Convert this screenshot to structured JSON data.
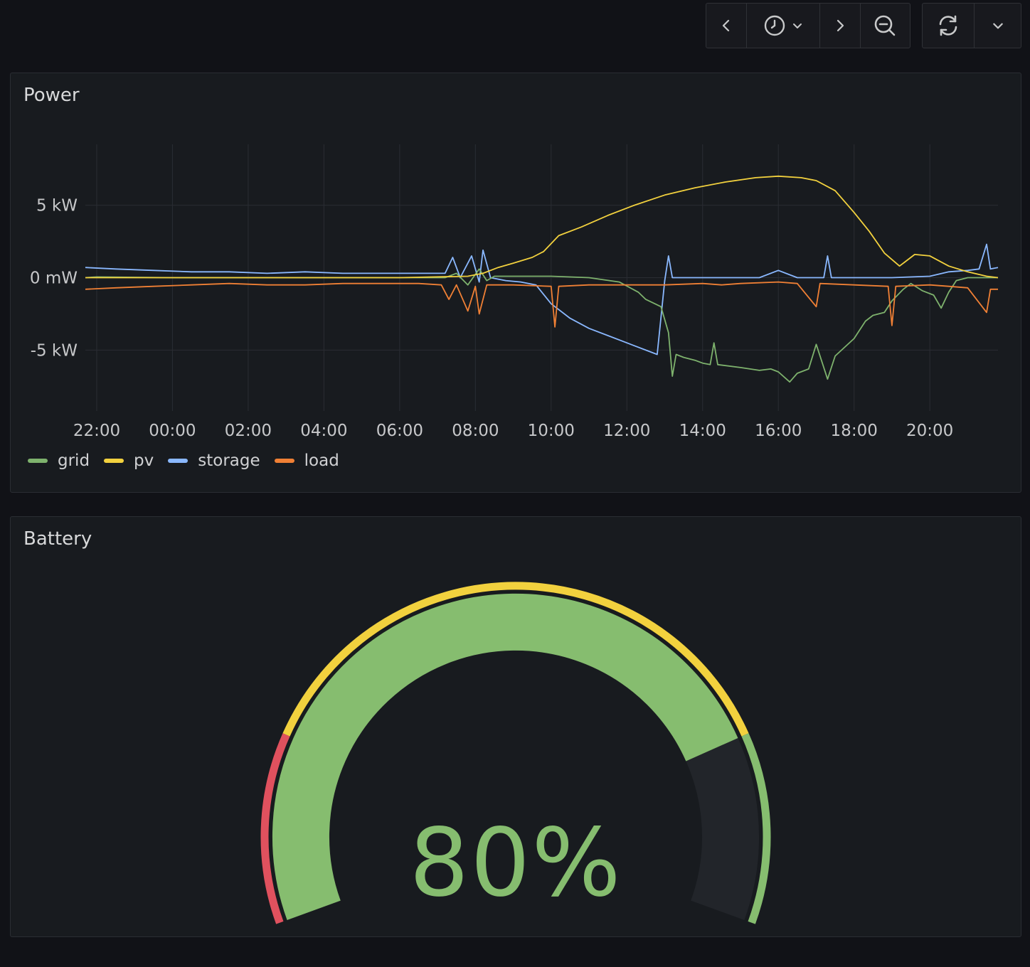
{
  "toolbar": {
    "icons": [
      "chevron-left-icon",
      "clock-icon",
      "chevron-down-icon",
      "chevron-right-icon",
      "zoom-out-icon",
      "refresh-icon",
      "chevron-down-icon"
    ]
  },
  "colors": {
    "grid": "#7eb26d",
    "gridLine": "#86bd6f",
    "pv": "#f2d13e",
    "storage": "#8ab8ff",
    "load": "#f08035",
    "red": "#e0515e",
    "gaugeTrack": "#22252a"
  },
  "power": {
    "title": "Power",
    "chart_data": {
      "type": "line",
      "x_ticks": [
        "22:00",
        "00:00",
        "02:00",
        "04:00",
        "06:00",
        "08:00",
        "10:00",
        "12:00",
        "14:00",
        "16:00",
        "18:00",
        "20:00"
      ],
      "y_ticks": [
        "5 kW",
        "0 mW",
        "-5 kW"
      ],
      "x_range_hours": [
        21.7,
        45.8
      ],
      "y_range_kw": [
        -9.2,
        9.2
      ],
      "series": [
        {
          "name": "grid",
          "color": "#7eb26d",
          "points": [
            [
              21.7,
              0
            ],
            [
              22,
              0.05
            ],
            [
              24,
              0
            ],
            [
              26,
              0
            ],
            [
              28,
              0
            ],
            [
              30,
              0
            ],
            [
              31.2,
              0
            ],
            [
              31.5,
              0.3
            ],
            [
              31.8,
              -0.5
            ],
            [
              32.1,
              0.6
            ],
            [
              32.3,
              -0.2
            ],
            [
              32.5,
              0.1
            ],
            [
              33,
              0.1
            ],
            [
              34,
              0.1
            ],
            [
              35,
              0
            ],
            [
              35.8,
              -0.3
            ],
            [
              36.3,
              -1
            ],
            [
              36.5,
              -1.5
            ],
            [
              36.9,
              -2
            ],
            [
              37.1,
              -3.8
            ],
            [
              37.2,
              -6.8
            ],
            [
              37.3,
              -5.3
            ],
            [
              37.5,
              -5.5
            ],
            [
              37.8,
              -5.7
            ],
            [
              38,
              -5.9
            ],
            [
              38.2,
              -6
            ],
            [
              38.3,
              -4.5
            ],
            [
              38.4,
              -6
            ],
            [
              39,
              -6.2
            ],
            [
              39.5,
              -6.4
            ],
            [
              39.8,
              -6.3
            ],
            [
              40,
              -6.5
            ],
            [
              40.3,
              -7.2
            ],
            [
              40.5,
              -6.6
            ],
            [
              40.8,
              -6.3
            ],
            [
              41,
              -4.6
            ],
            [
              41.2,
              -6.2
            ],
            [
              41.3,
              -7
            ],
            [
              41.5,
              -5.4
            ],
            [
              42,
              -4.2
            ],
            [
              42.3,
              -3
            ],
            [
              42.5,
              -2.6
            ],
            [
              42.8,
              -2.4
            ],
            [
              43,
              -1.6
            ],
            [
              43.3,
              -0.8
            ],
            [
              43.5,
              -0.4
            ],
            [
              43.8,
              -0.9
            ],
            [
              44.1,
              -1.2
            ],
            [
              44.3,
              -2.1
            ],
            [
              44.5,
              -1
            ],
            [
              44.7,
              -0.2
            ],
            [
              45,
              0
            ],
            [
              45.5,
              0
            ],
            [
              45.8,
              0
            ]
          ]
        },
        {
          "name": "pv",
          "color": "#f2d13e",
          "points": [
            [
              21.7,
              0
            ],
            [
              24,
              0
            ],
            [
              26,
              0
            ],
            [
              28,
              0
            ],
            [
              30,
              0
            ],
            [
              31.8,
              0.1
            ],
            [
              32.2,
              0.3
            ],
            [
              32.6,
              0.7
            ],
            [
              33,
              1
            ],
            [
              33.5,
              1.4
            ],
            [
              33.8,
              1.8
            ],
            [
              34.2,
              2.9
            ],
            [
              34.8,
              3.5
            ],
            [
              35.5,
              4.3
            ],
            [
              36.2,
              5
            ],
            [
              37,
              5.7
            ],
            [
              37.8,
              6.2
            ],
            [
              38.6,
              6.6
            ],
            [
              39.4,
              6.9
            ],
            [
              40,
              7
            ],
            [
              40.6,
              6.9
            ],
            [
              41,
              6.7
            ],
            [
              41.5,
              6
            ],
            [
              42,
              4.5
            ],
            [
              42.4,
              3.2
            ],
            [
              42.8,
              1.7
            ],
            [
              43.2,
              0.8
            ],
            [
              43.6,
              1.6
            ],
            [
              44,
              1.5
            ],
            [
              44.5,
              0.8
            ],
            [
              45,
              0.4
            ],
            [
              45.5,
              0.1
            ],
            [
              45.8,
              0
            ]
          ]
        },
        {
          "name": "storage",
          "color": "#8ab8ff",
          "points": [
            [
              21.7,
              0.7
            ],
            [
              22.5,
              0.6
            ],
            [
              23.5,
              0.5
            ],
            [
              24.5,
              0.4
            ],
            [
              25.5,
              0.4
            ],
            [
              26.5,
              0.3
            ],
            [
              27.5,
              0.4
            ],
            [
              28.5,
              0.3
            ],
            [
              29.5,
              0.3
            ],
            [
              30.5,
              0.3
            ],
            [
              31.2,
              0.3
            ],
            [
              31.4,
              1.4
            ],
            [
              31.6,
              0
            ],
            [
              31.9,
              1.5
            ],
            [
              32.1,
              -0.3
            ],
            [
              32.2,
              1.9
            ],
            [
              32.4,
              0
            ],
            [
              32.8,
              -0.2
            ],
            [
              33.2,
              -0.3
            ],
            [
              33.6,
              -0.5
            ],
            [
              34,
              -1.8
            ],
            [
              34.5,
              -2.8
            ],
            [
              35,
              -3.5
            ],
            [
              35.5,
              -4
            ],
            [
              36,
              -4.5
            ],
            [
              36.5,
              -5
            ],
            [
              36.8,
              -5.3
            ],
            [
              37,
              -0.2
            ],
            [
              37.1,
              1.5
            ],
            [
              37.2,
              0
            ],
            [
              38,
              0
            ],
            [
              39,
              0
            ],
            [
              39.5,
              0
            ],
            [
              40,
              0.5
            ],
            [
              40.5,
              0
            ],
            [
              41.2,
              0
            ],
            [
              41.3,
              1.5
            ],
            [
              41.4,
              0
            ],
            [
              42,
              0
            ],
            [
              43,
              0
            ],
            [
              44,
              0.1
            ],
            [
              44.5,
              0.4
            ],
            [
              45,
              0.5
            ],
            [
              45.3,
              0.6
            ],
            [
              45.5,
              2.3
            ],
            [
              45.6,
              0.6
            ],
            [
              45.8,
              0.7
            ]
          ]
        },
        {
          "name": "load",
          "color": "#f08035",
          "points": [
            [
              21.7,
              -0.8
            ],
            [
              22.5,
              -0.7
            ],
            [
              23.5,
              -0.6
            ],
            [
              24.5,
              -0.5
            ],
            [
              25.5,
              -0.4
            ],
            [
              26.5,
              -0.5
            ],
            [
              27.5,
              -0.5
            ],
            [
              28.5,
              -0.4
            ],
            [
              29.5,
              -0.4
            ],
            [
              30.5,
              -0.4
            ],
            [
              31.1,
              -0.5
            ],
            [
              31.3,
              -1.5
            ],
            [
              31.5,
              -0.5
            ],
            [
              31.8,
              -2.3
            ],
            [
              32,
              -0.6
            ],
            [
              32.1,
              -2.5
            ],
            [
              32.3,
              -0.5
            ],
            [
              33,
              -0.5
            ],
            [
              34,
              -0.6
            ],
            [
              34.1,
              -3.4
            ],
            [
              34.2,
              -0.6
            ],
            [
              35,
              -0.5
            ],
            [
              36,
              -0.5
            ],
            [
              37,
              -0.5
            ],
            [
              38,
              -0.4
            ],
            [
              38.5,
              -0.5
            ],
            [
              39,
              -0.4
            ],
            [
              40,
              -0.3
            ],
            [
              40.5,
              -0.4
            ],
            [
              41,
              -2
            ],
            [
              41.1,
              -0.4
            ],
            [
              42,
              -0.5
            ],
            [
              42.9,
              -0.6
            ],
            [
              43,
              -3.3
            ],
            [
              43.1,
              -0.6
            ],
            [
              44,
              -0.5
            ],
            [
              44.5,
              -0.6
            ],
            [
              45,
              -0.7
            ],
            [
              45.5,
              -2.4
            ],
            [
              45.6,
              -0.8
            ],
            [
              45.8,
              -0.8
            ]
          ]
        }
      ]
    },
    "legend": [
      {
        "name": "grid",
        "color": "#7eb26d"
      },
      {
        "name": "pv",
        "color": "#f2d13e"
      },
      {
        "name": "storage",
        "color": "#8ab8ff"
      },
      {
        "name": "load",
        "color": "#f08035"
      }
    ]
  },
  "battery": {
    "title": "Battery",
    "value_text": "80%",
    "value_fraction": 0.8,
    "thresholds": [
      {
        "from": 0,
        "to": 0.2,
        "color": "#e0515e"
      },
      {
        "from": 0.2,
        "to": 0.8,
        "color": "#f2d13e"
      },
      {
        "from": 0.8,
        "to": 1.0,
        "color": "#86bd6f"
      }
    ]
  }
}
